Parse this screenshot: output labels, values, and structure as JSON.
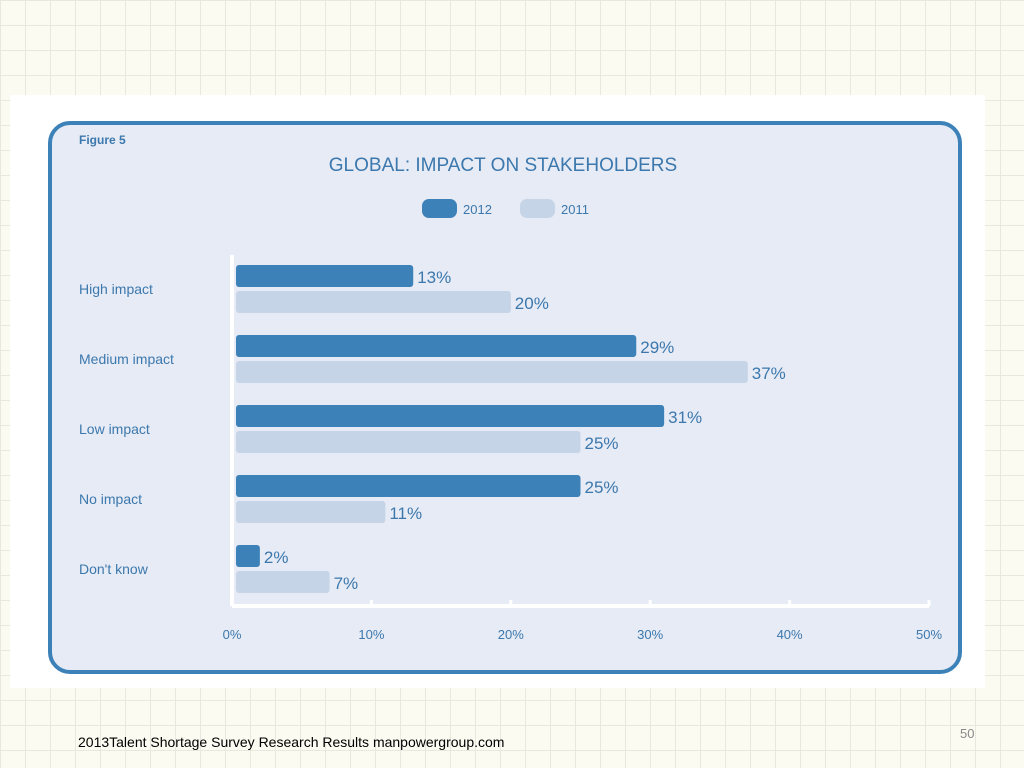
{
  "colors": {
    "series_2012": "#3d81b9",
    "series_2011": "#c5d4e7",
    "panel_bg": "#e6ebf5",
    "frame": "#3d81b9",
    "text": "#3c78ad"
  },
  "chart_data": {
    "type": "bar",
    "orientation": "horizontal",
    "figure_label": "Figure 5",
    "title": "GLOBAL: IMPACT ON STAKEHOLDERS",
    "categories": [
      "High impact",
      "Medium impact",
      "Low impact",
      "No impact",
      "Don't know"
    ],
    "series": [
      {
        "name": "2012",
        "values": [
          13,
          29,
          31,
          25,
          2
        ],
        "labels": [
          "13%",
          "29%",
          "31%",
          "25%",
          "2%"
        ]
      },
      {
        "name": "2011",
        "values": [
          20,
          37,
          25,
          11,
          7
        ],
        "labels": [
          "20%",
          "37%",
          "25%",
          "11%",
          "7%"
        ]
      }
    ],
    "xlim": [
      0,
      50
    ],
    "xticks": [
      "0%",
      "10%",
      "20%",
      "30%",
      "40%",
      "50%"
    ],
    "legend": "top-center",
    "grid": false
  },
  "footer": {
    "source": "2013Talent Shortage Survey Research Results manpowergroup.com",
    "page_number": "50"
  }
}
